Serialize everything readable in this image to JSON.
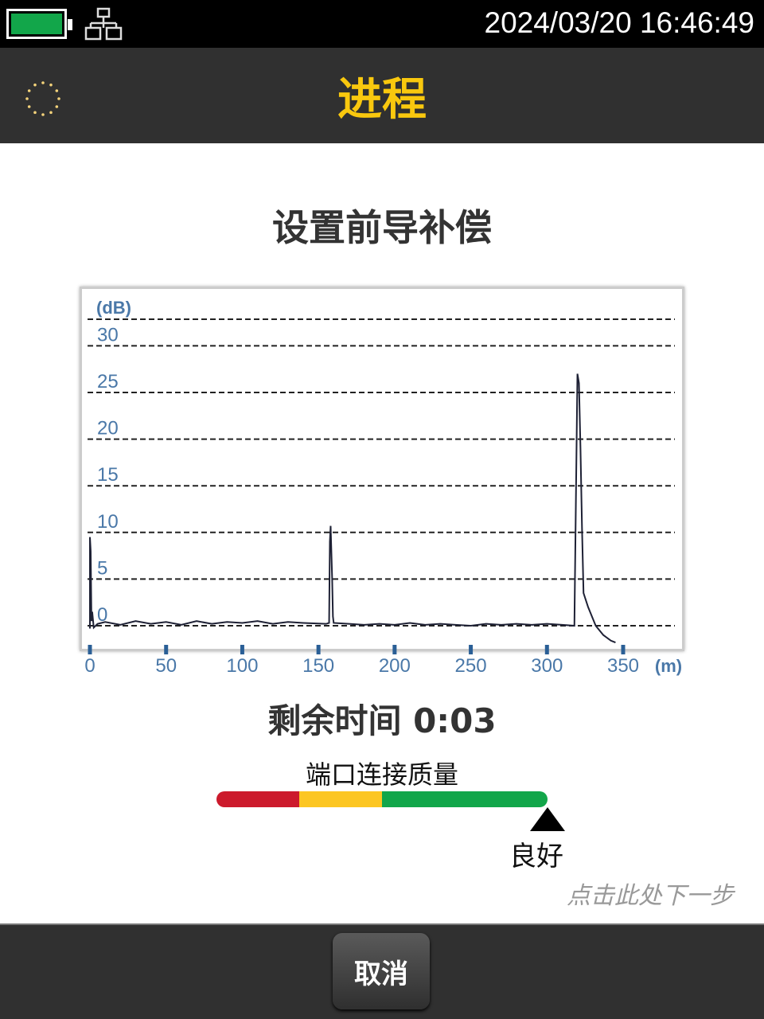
{
  "status_bar": {
    "datetime": "2024/03/20 16:46:49",
    "battery_icon": "battery-full-icon",
    "battery_level_pct": 100,
    "battery_color": "#12a64a",
    "network_icon": "network-icon"
  },
  "header": {
    "title": "进程",
    "spinner_icon": "loading-spinner-icon",
    "title_color": "#f9c80e"
  },
  "main": {
    "subtitle": "设置前导补偿",
    "remaining_label": "剩余时间 0:03",
    "quality": {
      "label": "端口连接质量",
      "value_label": "良好",
      "level_pct": 100,
      "segments": [
        {
          "color": "#cc1a2c",
          "pct": 25
        },
        {
          "color": "#fcc622",
          "pct": 25
        },
        {
          "color": "#12a64a",
          "pct": 50
        }
      ]
    },
    "next_hint": "点击此处下一步"
  },
  "chart_data": {
    "type": "line",
    "ylabel": "(dB)",
    "xlabel": "(m)",
    "yticks": [
      0,
      5,
      10,
      15,
      20,
      25,
      30
    ],
    "xticks": [
      0,
      50,
      100,
      150,
      200,
      250,
      300,
      350
    ],
    "xlim": [
      0,
      350
    ],
    "ylim": [
      -2,
      33
    ],
    "grid": true,
    "series": [
      {
        "color": "#1e2135",
        "points": [
          [
            0,
            -0.3
          ],
          [
            0,
            9.5
          ],
          [
            0.5,
            8
          ],
          [
            1,
            0.5
          ],
          [
            1.5,
            1.5
          ],
          [
            2.5,
            -0.2
          ],
          [
            5,
            0.2
          ],
          [
            10,
            0.4
          ],
          [
            20,
            0.1
          ],
          [
            30,
            0.5
          ],
          [
            40,
            0.2
          ],
          [
            50,
            0.4
          ],
          [
            60,
            0.1
          ],
          [
            70,
            0.5
          ],
          [
            80,
            0.2
          ],
          [
            90,
            0.4
          ],
          [
            100,
            0.3
          ],
          [
            110,
            0.5
          ],
          [
            120,
            0.2
          ],
          [
            130,
            0.4
          ],
          [
            140,
            0.3
          ],
          [
            155,
            0.2
          ],
          [
            157,
            0.3
          ],
          [
            157.5,
            9
          ],
          [
            158,
            10.7
          ],
          [
            159,
            5
          ],
          [
            159.5,
            1
          ],
          [
            160,
            0.3
          ],
          [
            170,
            0.2
          ],
          [
            180,
            0.1
          ],
          [
            190,
            0.2
          ],
          [
            200,
            0.1
          ],
          [
            210,
            0.3
          ],
          [
            220,
            0.1
          ],
          [
            230,
            0.2
          ],
          [
            240,
            0.1
          ],
          [
            250,
            0.0
          ],
          [
            260,
            0.2
          ],
          [
            270,
            0.1
          ],
          [
            280,
            0.2
          ],
          [
            290,
            0.1
          ],
          [
            300,
            0.2
          ],
          [
            310,
            0.1
          ],
          [
            318,
            0.0
          ],
          [
            320,
            27
          ],
          [
            321,
            26
          ],
          [
            322,
            19
          ],
          [
            323,
            10.5
          ],
          [
            324,
            3.5
          ],
          [
            327,
            2
          ],
          [
            332,
            0
          ],
          [
            337,
            -1
          ],
          [
            342,
            -1.6
          ],
          [
            345,
            -1.8
          ]
        ]
      }
    ]
  },
  "footer": {
    "cancel_label": "取消"
  }
}
